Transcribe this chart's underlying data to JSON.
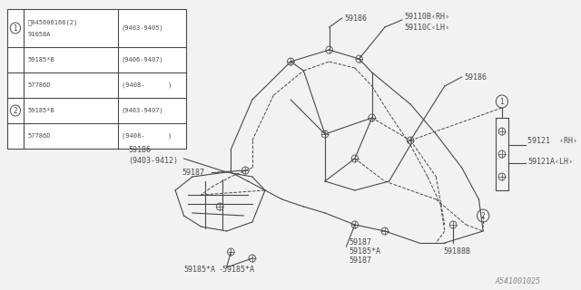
{
  "bg_color": "#f2f2f2",
  "watermark": "A541001025",
  "table": {
    "rows": [
      {
        "circle": "1",
        "part": "Ⓢ045606166(2)\n91058A",
        "date": "(9403-9405)"
      },
      {
        "circle": "",
        "part": "59185*B",
        "date": "(9406-9407)"
      },
      {
        "circle": "",
        "part": "57786D",
        "date": "(9408-      )"
      },
      {
        "circle": "2",
        "part": "59185*B",
        "date": "(9403-9407)"
      },
      {
        "circle": "",
        "part": "57786D",
        "date": "(9408-      )"
      }
    ]
  }
}
